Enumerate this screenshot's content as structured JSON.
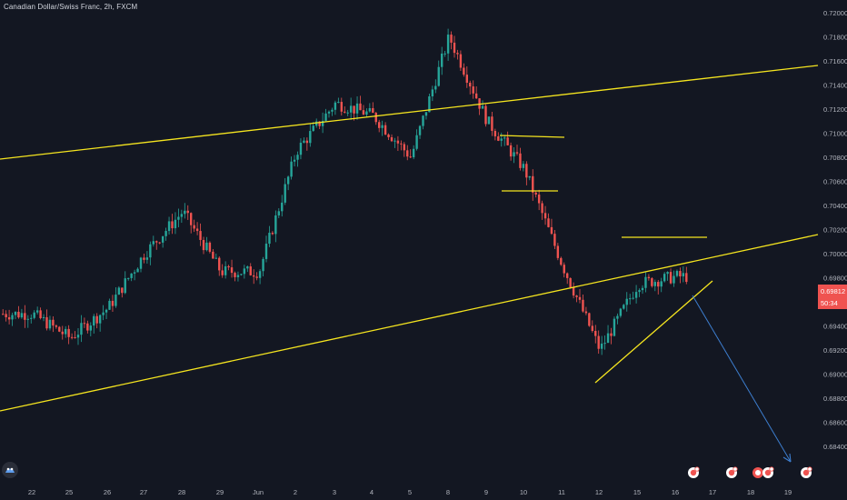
{
  "header": {
    "title": "Canadian Dollar/Swiss Franc, 2h, FXCM"
  },
  "logo": {
    "text": ""
  },
  "price_axis": {
    "ticks": [
      "0.72000",
      "0.71800",
      "0.71600",
      "0.71400",
      "0.71200",
      "0.71000",
      "0.70800",
      "0.70600",
      "0.70400",
      "0.70200",
      "0.70000",
      "0.69800",
      "0.69600",
      "0.69400",
      "0.69200",
      "0.69000",
      "0.68800",
      "0.68600",
      "0.68400"
    ],
    "current_price": "0.69812",
    "countdown": "50:34"
  },
  "time_axis": {
    "ticks": [
      "22",
      "25",
      "26",
      "27",
      "28",
      "29",
      "Jun",
      "2",
      "3",
      "4",
      "5",
      "8",
      "9",
      "10",
      "11",
      "12",
      "15",
      "16",
      "17",
      "18",
      "19"
    ]
  },
  "colors": {
    "background": "#131722",
    "up": "#26a69a",
    "down": "#ef5350",
    "trendline": "#f5e51f",
    "projection": "#3d7ecf",
    "price_tag": "#ef5350"
  },
  "icons": [
    "logo-icon",
    "event-icon",
    "event-icon",
    "event-icon",
    "event-icon",
    "event-icon"
  ],
  "chart_data": {
    "type": "candlestick",
    "symbol": "Canadian Dollar/Swiss Franc",
    "interval": "2h",
    "source": "FXCM",
    "ylim": [
      0.6835,
      0.7205
    ],
    "close_path": [
      {
        "x": "22",
        "y": 0.695
      },
      {
        "x": "25",
        "y": 0.693
      },
      {
        "x": "26",
        "y": 0.6955
      },
      {
        "x": "27",
        "y": 0.7
      },
      {
        "x": "28",
        "y": 0.7035
      },
      {
        "x": "29",
        "y": 0.6985
      },
      {
        "x": "Jun",
        "y": 0.6985
      },
      {
        "x": "2",
        "y": 0.7085
      },
      {
        "x": "3",
        "y": 0.7125
      },
      {
        "x": "4",
        "y": 0.7115
      },
      {
        "x": "5",
        "y": 0.708
      },
      {
        "x": "8",
        "y": 0.718
      },
      {
        "x": "9",
        "y": 0.711
      },
      {
        "x": "10",
        "y": 0.707
      },
      {
        "x": "11",
        "y": 0.699
      },
      {
        "x": "12",
        "y": 0.692
      },
      {
        "x": "15",
        "y": 0.6975
      },
      {
        "x": "16",
        "y": 0.6981
      }
    ],
    "last_price": 0.69812
  }
}
